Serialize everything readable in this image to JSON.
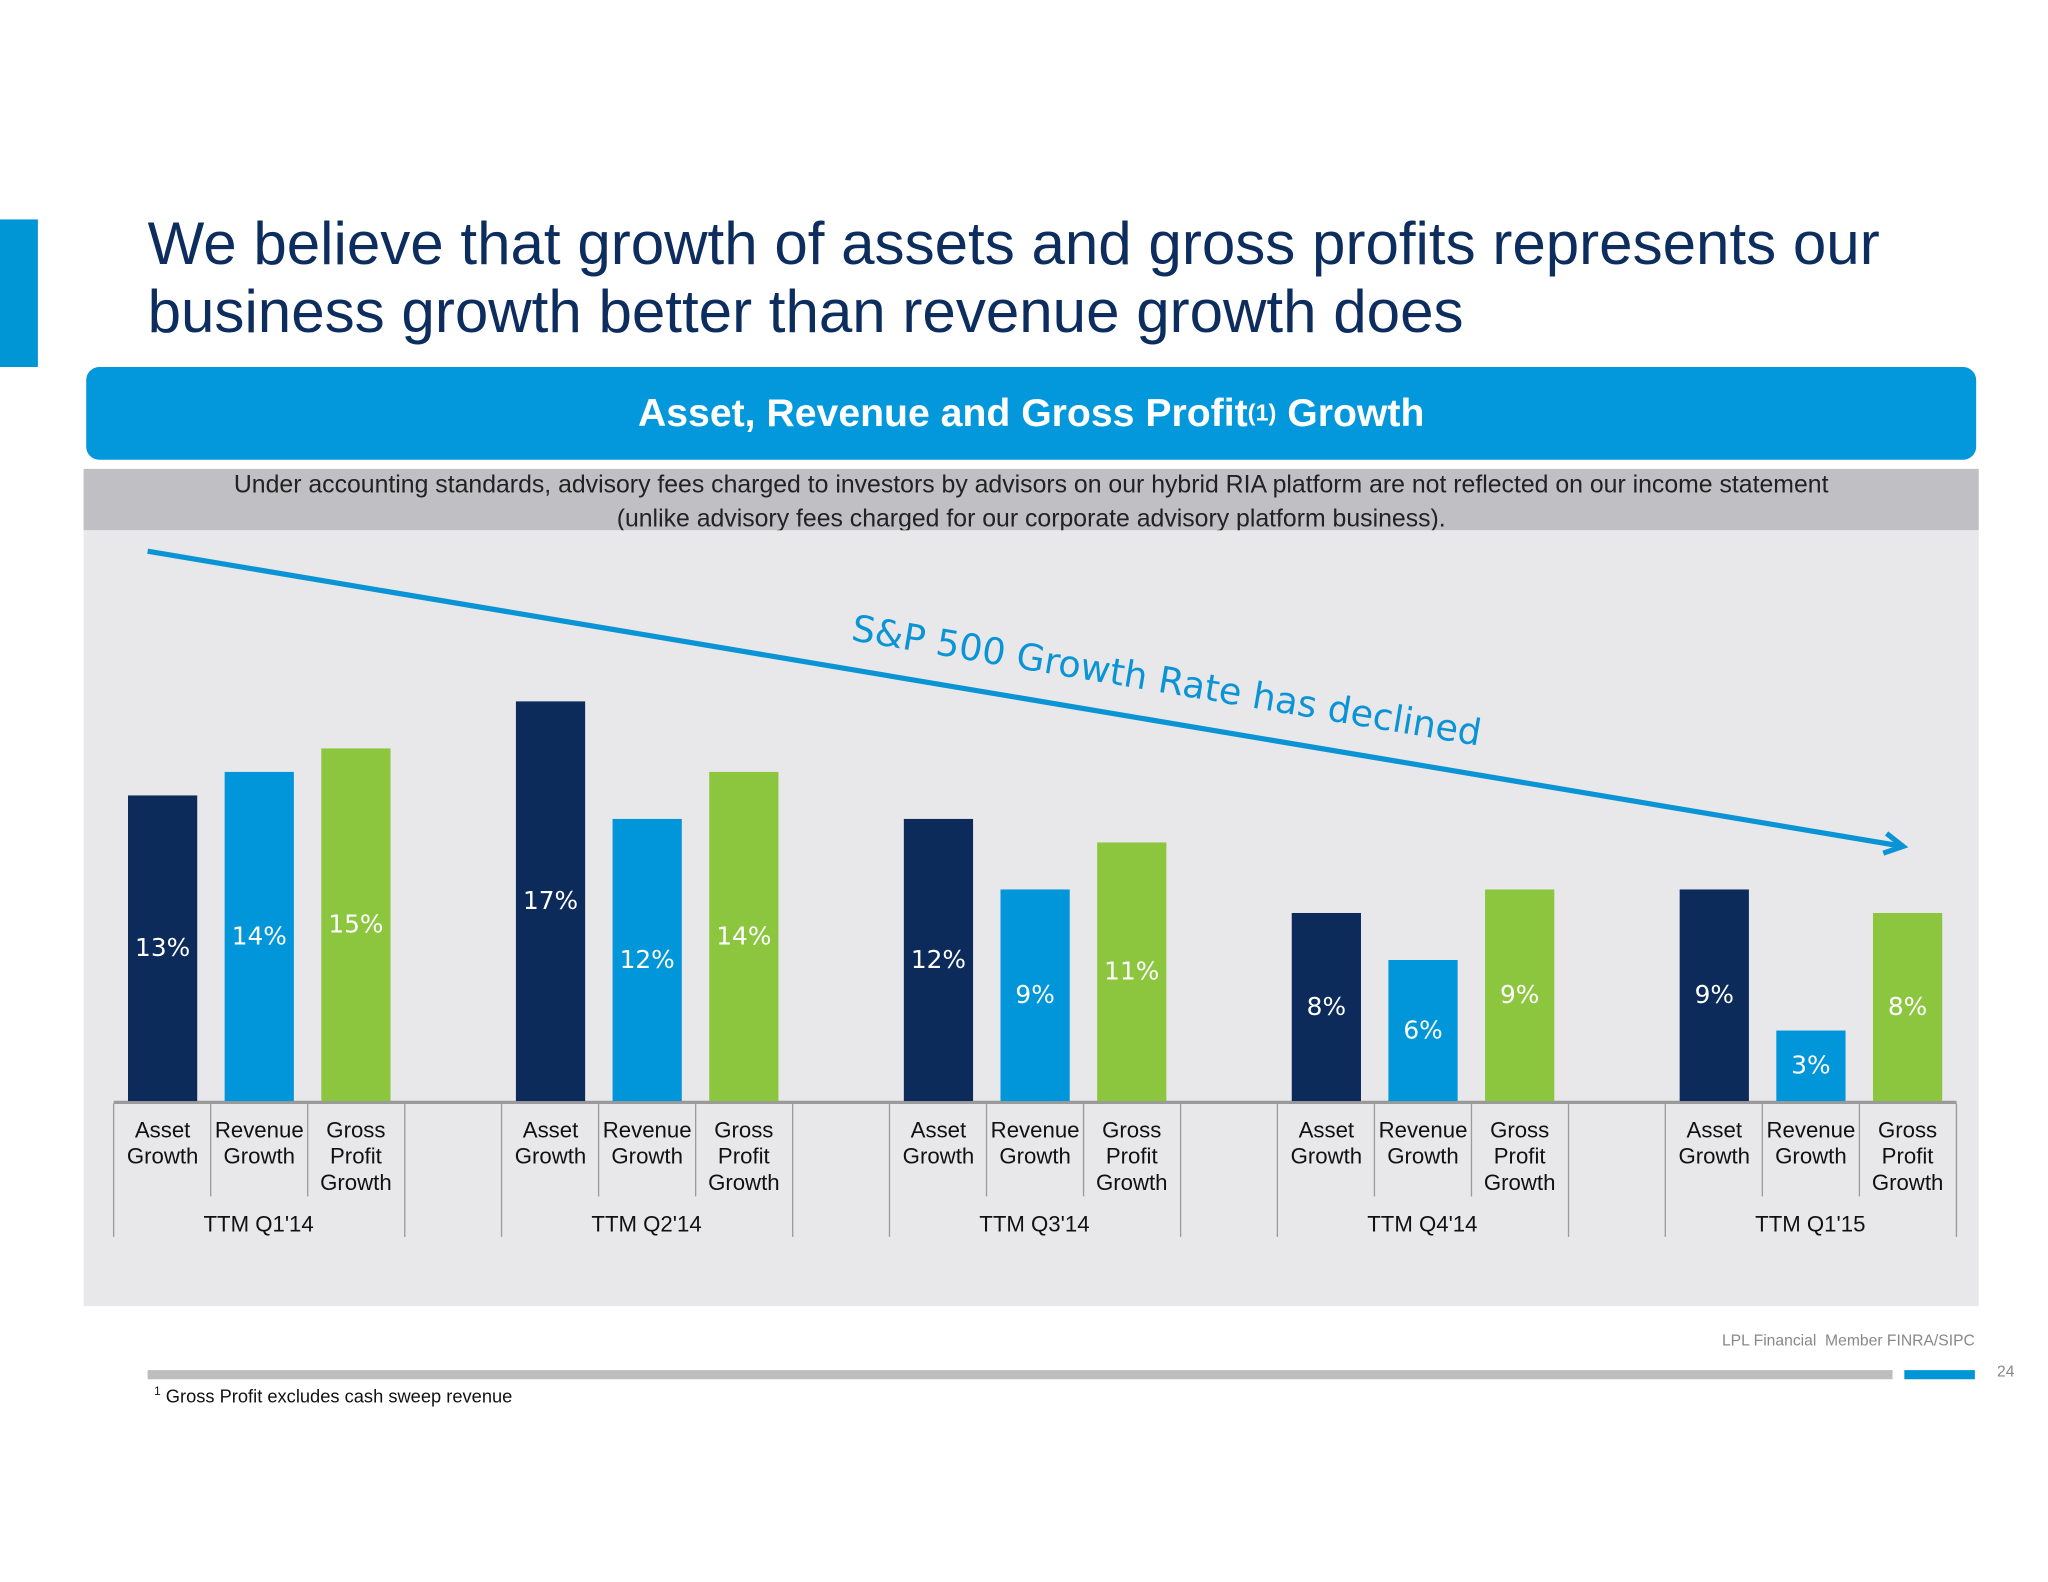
{
  "title": "We believe that growth of assets and gross profits represents our business growth better than revenue growth does",
  "banner": {
    "text": "Asset, Revenue and Gross Profit",
    "sup": "(1)",
    "text_after": " Growth"
  },
  "note": {
    "line1": "Under accounting standards, advisory fees charged to investors by advisors on our hybrid RIA platform are not reflected on our income statement",
    "line2": "(unlike advisory fees charged for our corporate advisory platform business)."
  },
  "chart_data": {
    "type": "bar",
    "categories": [
      "TTM Q1'14",
      "TTM Q2'14",
      "TTM Q3'14",
      "TTM Q4'14",
      "TTM Q1'15"
    ],
    "series": [
      {
        "name": "Asset Growth",
        "values": [
          13,
          17,
          12,
          8,
          9
        ],
        "color": "#0c2b5b"
      },
      {
        "name": "Revenue Growth",
        "values": [
          14,
          12,
          9,
          6,
          3
        ],
        "color": "#0096d9"
      },
      {
        "name": "Gross Profit Growth",
        "values": [
          15,
          14,
          11,
          9,
          8
        ],
        "color": "#8cc63f"
      }
    ],
    "series_labels": [
      [
        "Asset",
        "Growth"
      ],
      [
        "Revenue",
        "Growth"
      ],
      [
        "Gross",
        "Profit",
        "Growth"
      ]
    ],
    "value_suffix": "%",
    "annotation": "S&P 500 Growth Rate has declined",
    "annotation_color": "#0a94d6",
    "grid": false
  },
  "footer": {
    "brand": "LPL Financial  Member FINRA/SIPC",
    "page": "24",
    "footnote_mark": "1",
    "footnote": " Gross Profit excludes cash sweep revenue"
  }
}
